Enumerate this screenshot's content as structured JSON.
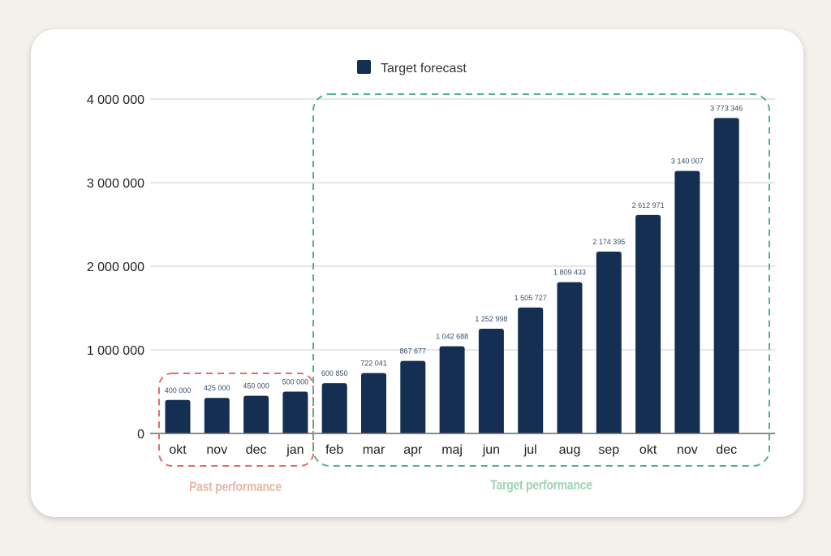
{
  "chart_data": {
    "type": "bar",
    "legend": {
      "position": "top",
      "entries": [
        "Target forecast"
      ]
    },
    "categories": [
      "okt",
      "nov",
      "dec",
      "jan",
      "feb",
      "mar",
      "apr",
      "maj",
      "jun",
      "jul",
      "aug",
      "sep",
      "okt",
      "nov",
      "dec"
    ],
    "series": [
      {
        "name": "Target forecast",
        "color": "#142f52",
        "values": [
          400000,
          425000,
          450000,
          500000,
          600850,
          722041,
          867677,
          1042688,
          1252998,
          1505727,
          1809433,
          2174395,
          2612971,
          3140007,
          3773346
        ],
        "data_labels": [
          "400 000",
          "425 000",
          "450 000",
          "500 000",
          "600 850",
          "722 041",
          "867 677",
          "1 042 688",
          "1 252 998",
          "1 505 727",
          "1 809 433",
          "2 174 395",
          "2 612 971",
          "3 140 007",
          "3 773 346"
        ]
      }
    ],
    "yticks": [
      0,
      1000000,
      2000000,
      3000000,
      4000000
    ],
    "ytick_labels": [
      "0",
      "1 000 000",
      "2 000 000",
      "3 000 000",
      "4 000 000"
    ],
    "ylim": [
      0,
      4000000
    ],
    "grid": true,
    "annotations": [
      {
        "text": "Past performance",
        "color": "#e8b8a8",
        "box_color": "#e86a6a",
        "range": [
          "okt",
          "jan"
        ]
      },
      {
        "text": "Target performance",
        "color": "#9fd3b4",
        "box_color": "#4db38a",
        "range": [
          "feb",
          "dec"
        ]
      }
    ]
  }
}
